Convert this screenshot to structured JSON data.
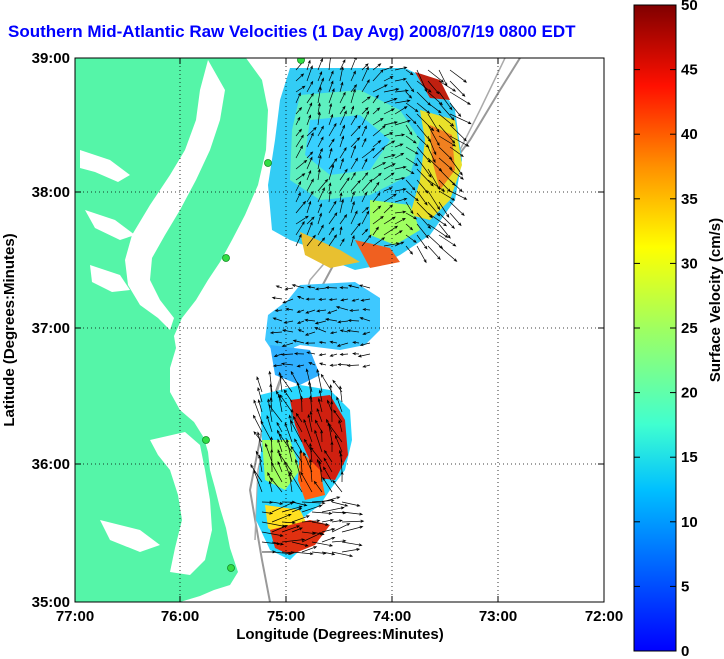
{
  "title": "Southern Mid-Atlantic Raw Velocities (1 Day Avg) 2008/07/19 0800 EDT",
  "axes": {
    "xlabel": "Longitude (Degrees:Minutes)",
    "ylabel": "Latitude (Degrees:Minutes)",
    "xticks": [
      "77:00",
      "76:00",
      "75:00",
      "74:00",
      "73:00",
      "72:00"
    ],
    "yticks": [
      "39:00",
      "38:00",
      "37:00",
      "36:00",
      "35:00"
    ]
  },
  "colorbar": {
    "label": "Surface Velocity (cm/s)",
    "ticks": [
      "50",
      "45",
      "40",
      "35",
      "30",
      "25",
      "20",
      "15",
      "10",
      "5",
      "0"
    ],
    "range": [
      0,
      50
    ]
  },
  "colors": {
    "land": "#55f5a8",
    "grid": "#000000",
    "title": "#0000ff",
    "station": "#33dd44"
  }
}
